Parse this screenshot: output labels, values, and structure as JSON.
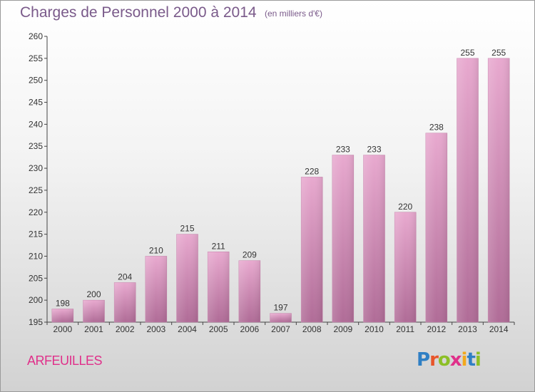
{
  "header": {
    "title": "Charges de Personnel 2000 à 2014",
    "subtitle": "(en milliers d'€)"
  },
  "footer": {
    "commune": "ARFEUILLES",
    "logo_letters": [
      "P",
      "r",
      "o",
      "x",
      "i",
      "t",
      "i"
    ],
    "logo_colors": [
      "#2f7fc4",
      "#e8552a",
      "#8cbf26",
      "#e0308a",
      "#f2a81d",
      "#2f7fc4",
      "#8cbf26"
    ]
  },
  "chart_data": {
    "type": "bar",
    "title": "Charges de Personnel 2000 à 2014",
    "subtitle": "(en milliers d'€)",
    "categories": [
      "2000",
      "2001",
      "2002",
      "2003",
      "2004",
      "2005",
      "2006",
      "2007",
      "2008",
      "2009",
      "2010",
      "2011",
      "2012",
      "2013",
      "2014"
    ],
    "values": [
      198,
      200,
      204,
      210,
      215,
      211,
      209,
      197,
      228,
      233,
      233,
      220,
      238,
      255,
      255
    ],
    "ylim": [
      195,
      260
    ],
    "yticks": [
      195,
      200,
      205,
      210,
      215,
      220,
      225,
      230,
      235,
      240,
      245,
      250,
      255,
      260
    ],
    "bar_color": "#d98ab8",
    "grid": false,
    "legend": "none"
  }
}
